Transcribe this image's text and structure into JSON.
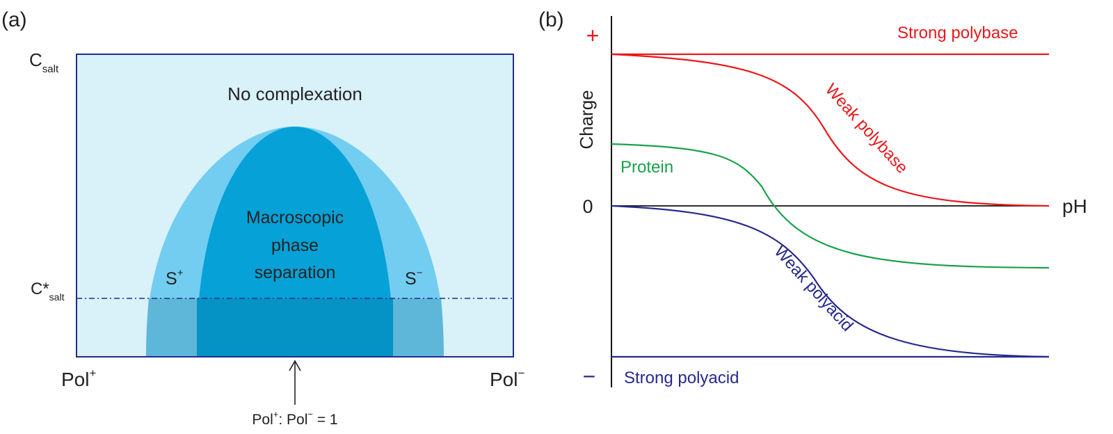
{
  "panel_a": {
    "label": "(a)",
    "y_label_main": "C",
    "y_label_sub": "salt",
    "cstar_main": "C*",
    "cstar_sub": "salt",
    "region_none": "No complexation",
    "region_macro": [
      "Macroscopic",
      "phase",
      "separation"
    ],
    "s_plus": "S",
    "s_plus_sup": "+",
    "s_minus": "S",
    "s_minus_sup": "−",
    "pol_plus": "Pol",
    "pol_plus_sup": "+",
    "pol_minus": "Pol",
    "pol_minus_sup": "−",
    "ratio_pre": "Pol",
    "ratio_sup1": "+",
    "ratio_mid": ": Pol",
    "ratio_sup2": "−",
    "ratio_post": " = 1",
    "colors": {
      "background": "#d9f1f9",
      "outer_region": "#72cdf1",
      "inner_region": "#05a1d7",
      "below_outer": "#5eb7d9",
      "below_inner": "#0592c5",
      "frame": "#1f2c8c"
    }
  },
  "panel_b": {
    "label": "(b)",
    "plus_sign": "+",
    "minus_sign": "−",
    "zero_label": "0",
    "y_axis_label": "Charge",
    "x_axis_label": "pH",
    "strong_polybase": "Strong polybase",
    "weak_polybase": "Weak polybase",
    "protein": "Protein",
    "weak_polyacid": "Weak polyacid",
    "strong_polyacid": "Strong polyacid",
    "colors": {
      "polybase": "#e8191c",
      "protein": "#19a14a",
      "polyacid": "#262a8e",
      "axis": "#111111"
    }
  }
}
